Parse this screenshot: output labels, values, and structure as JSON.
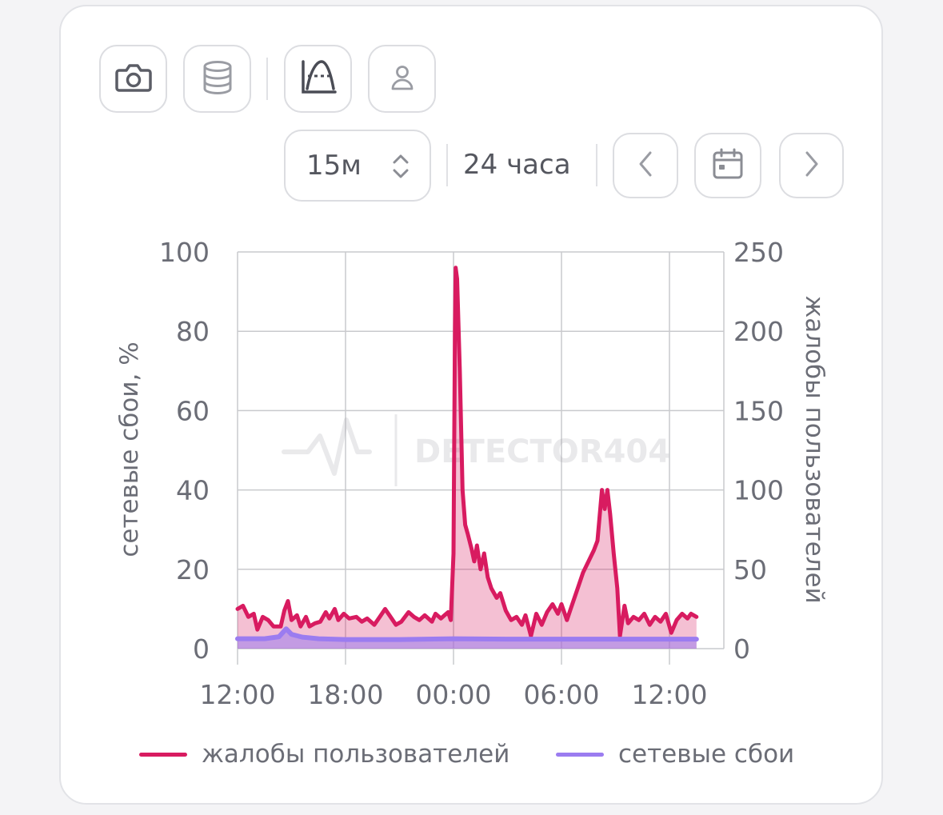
{
  "toolbar": {
    "camera_icon": "camera-icon",
    "database_icon": "database-icon",
    "chart_mode_icon": "chart-area-icon",
    "user_icon": "user-icon"
  },
  "controls": {
    "interval": "15м",
    "range": "24 часа",
    "prev_icon": "chevron-left-icon",
    "calendar_icon": "calendar-icon",
    "next_icon": "chevron-right-icon"
  },
  "watermark": "DETECTOR404",
  "colors": {
    "complaints": "#d81b60",
    "outages": "#9b7cf0",
    "grid": "#c9cacd"
  },
  "chart_data": {
    "type": "line",
    "x_ticks": [
      "12:00",
      "18:00",
      "00:00",
      "06:00",
      "12:00"
    ],
    "y_left": {
      "label": "сетевые сбои, %",
      "ticks": [
        0,
        20,
        40,
        60,
        80,
        100
      ],
      "lim": [
        0,
        100
      ]
    },
    "y_right": {
      "label": "жалобы пользователей",
      "ticks": [
        0,
        50,
        100,
        150,
        200,
        250
      ],
      "lim": [
        0,
        250
      ]
    },
    "x_hours": [
      0,
      25.5
    ],
    "series": [
      {
        "name": "жалобы пользователей",
        "axis": "right",
        "area": true,
        "points": [
          [
            0.0,
            25
          ],
          [
            0.3,
            27
          ],
          [
            0.6,
            20
          ],
          [
            0.9,
            22
          ],
          [
            1.1,
            12
          ],
          [
            1.4,
            20
          ],
          [
            1.7,
            18
          ],
          [
            2.0,
            14
          ],
          [
            2.4,
            14
          ],
          [
            2.6,
            24
          ],
          [
            2.8,
            30
          ],
          [
            3.0,
            18
          ],
          [
            3.3,
            21
          ],
          [
            3.5,
            14
          ],
          [
            3.8,
            20
          ],
          [
            4.0,
            14
          ],
          [
            4.3,
            16
          ],
          [
            4.6,
            17
          ],
          [
            4.9,
            23
          ],
          [
            5.1,
            19
          ],
          [
            5.4,
            25
          ],
          [
            5.6,
            18
          ],
          [
            5.9,
            22
          ],
          [
            6.2,
            19
          ],
          [
            6.6,
            20
          ],
          [
            6.9,
            17
          ],
          [
            7.2,
            19
          ],
          [
            7.6,
            15
          ],
          [
            7.9,
            20
          ],
          [
            8.2,
            25
          ],
          [
            8.5,
            20
          ],
          [
            8.8,
            15
          ],
          [
            9.1,
            17
          ],
          [
            9.5,
            23
          ],
          [
            9.8,
            20
          ],
          [
            10.1,
            18
          ],
          [
            10.4,
            21
          ],
          [
            10.8,
            17
          ],
          [
            11.0,
            22
          ],
          [
            11.3,
            19
          ],
          [
            11.5,
            21
          ],
          [
            11.7,
            23
          ],
          [
            11.85,
            18
          ],
          [
            12.0,
            60
          ],
          [
            12.08,
            200
          ],
          [
            12.12,
            240
          ],
          [
            12.2,
            233
          ],
          [
            12.35,
            175
          ],
          [
            12.5,
            100
          ],
          [
            12.65,
            78
          ],
          [
            12.8,
            72
          ],
          [
            13.0,
            63
          ],
          [
            13.15,
            55
          ],
          [
            13.3,
            65
          ],
          [
            13.5,
            50
          ],
          [
            13.7,
            60
          ],
          [
            13.9,
            45
          ],
          [
            14.1,
            38
          ],
          [
            14.4,
            32
          ],
          [
            14.6,
            35
          ],
          [
            14.9,
            24
          ],
          [
            15.2,
            18
          ],
          [
            15.5,
            20
          ],
          [
            15.8,
            15
          ],
          [
            16.0,
            21
          ],
          [
            16.3,
            8
          ],
          [
            16.6,
            22
          ],
          [
            16.9,
            15
          ],
          [
            17.2,
            23
          ],
          [
            17.5,
            28
          ],
          [
            17.8,
            22
          ],
          [
            18.0,
            28
          ],
          [
            18.3,
            18
          ],
          [
            18.6,
            28
          ],
          [
            18.9,
            38
          ],
          [
            19.2,
            48
          ],
          [
            19.5,
            55
          ],
          [
            19.8,
            62
          ],
          [
            20.0,
            68
          ],
          [
            20.25,
            100
          ],
          [
            20.4,
            88
          ],
          [
            20.55,
            100
          ],
          [
            20.7,
            85
          ],
          [
            20.9,
            60
          ],
          [
            21.1,
            38
          ],
          [
            21.25,
            8
          ],
          [
            21.5,
            27
          ],
          [
            21.7,
            16
          ],
          [
            22.0,
            20
          ],
          [
            22.3,
            18
          ],
          [
            22.6,
            22
          ],
          [
            22.9,
            15
          ],
          [
            23.2,
            20
          ],
          [
            23.5,
            17
          ],
          [
            23.8,
            22
          ],
          [
            24.1,
            10
          ],
          [
            24.4,
            18
          ],
          [
            24.7,
            22
          ],
          [
            25.0,
            19
          ],
          [
            25.2,
            22
          ],
          [
            25.5,
            20
          ]
        ]
      },
      {
        "name": "сетевые сбои",
        "axis": "left",
        "area": true,
        "points": [
          [
            0.0,
            2.5
          ],
          [
            1.5,
            2.5
          ],
          [
            2.3,
            3.0
          ],
          [
            2.7,
            5.0
          ],
          [
            3.0,
            3.6
          ],
          [
            3.6,
            2.9
          ],
          [
            4.5,
            2.5
          ],
          [
            6.0,
            2.3
          ],
          [
            9.0,
            2.3
          ],
          [
            12.0,
            2.5
          ],
          [
            15.0,
            2.4
          ],
          [
            18.0,
            2.4
          ],
          [
            21.0,
            2.4
          ],
          [
            25.5,
            2.4
          ]
        ]
      }
    ],
    "grid": true,
    "legend_position": "bottom"
  },
  "legend": [
    {
      "label": "жалобы пользователей",
      "color": "#d81b60"
    },
    {
      "label": "сетевые сбои",
      "color": "#9b7cf0"
    }
  ]
}
